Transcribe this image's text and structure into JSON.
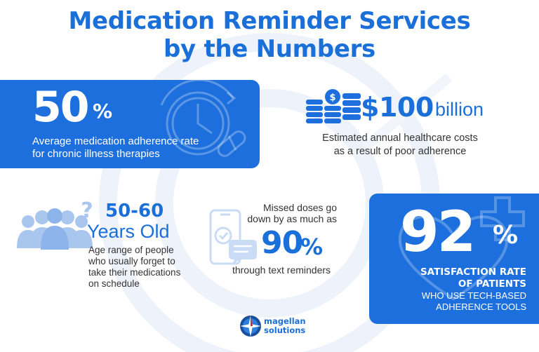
{
  "title": {
    "line1": "Medication Reminder Services",
    "line2": "by the Numbers"
  },
  "adherence": {
    "value": "50",
    "unit": "%",
    "desc_line1": "Average medication adherence rate",
    "desc_line2": "for chronic illness therapies",
    "icon": "clock-pill-icon"
  },
  "costs": {
    "value": "$100",
    "unit": "billion",
    "desc_line1": "Estimated annual healthcare costs",
    "desc_line2": "as a result of poor adherence",
    "icon": "coin-stacks-icon"
  },
  "age": {
    "value": "50-60",
    "unit": "Years Old",
    "desc_line1": "Age range of people",
    "desc_line2": "who usually forget to",
    "desc_line3": "take their medications",
    "desc_line4": "on schedule",
    "icon": "people-question-icon"
  },
  "missed": {
    "intro_line1": "Missed doses go",
    "intro_line2": "down by as much as",
    "value": "90",
    "unit": "%",
    "outro": "through text reminders",
    "icon": "phone-message-icon"
  },
  "satisfaction": {
    "value": "92",
    "unit": "%",
    "line1": "SATISFACTION RATE",
    "line2": "OF PATIENTS",
    "line3": "WHO USE TECH-BASED",
    "line4": "ADHERENCE TOOLS",
    "icon": "heart-cross-icon"
  },
  "logo": {
    "line1": "magellan",
    "line2": "solutions",
    "icon": "compass-rose-icon"
  },
  "colors": {
    "brand_blue": "#1c6fdc",
    "title_blue": "#1a6fd8",
    "text_dark": "#333333"
  }
}
